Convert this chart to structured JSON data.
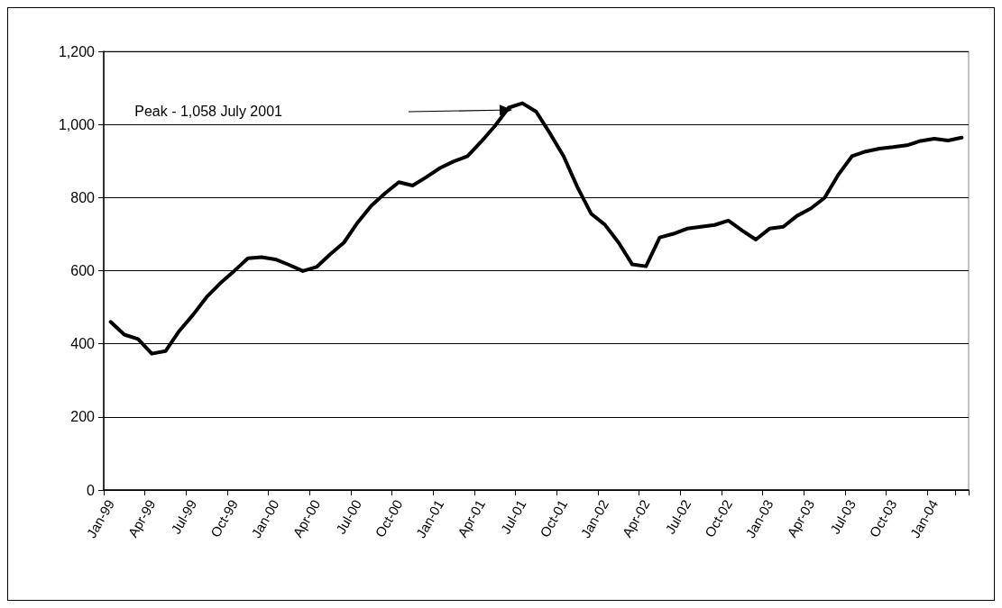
{
  "chart_data": {
    "type": "line",
    "categories": [
      "Jan-99",
      null,
      null,
      "Apr-99",
      null,
      null,
      "Jul-99",
      null,
      null,
      "Oct-99",
      null,
      null,
      "Jan-00",
      null,
      null,
      "Apr-00",
      null,
      null,
      "Jul-00",
      null,
      null,
      "Oct-00",
      null,
      null,
      "Jan-01",
      null,
      null,
      "Apr-01",
      null,
      null,
      "Jul-01",
      null,
      null,
      "Oct-01",
      null,
      null,
      "Jan-02",
      null,
      null,
      "Apr-02",
      null,
      null,
      "Jul-02",
      null,
      null,
      "Oct-02",
      null,
      null,
      "Jan-03",
      null,
      null,
      "Apr-03",
      null,
      null,
      "Jul-03",
      null,
      null,
      "Oct-03",
      null,
      null,
      "Jan-04",
      null,
      null
    ],
    "series": [
      {
        "color": "#000000",
        "values": [
          460,
          425,
          413,
          373,
          380,
          435,
          479,
          528,
          566,
          599,
          634,
          637,
          631,
          616,
          599,
          610,
          645,
          677,
          732,
          778,
          812,
          842,
          833,
          856,
          881,
          899,
          913,
          953,
          996,
          1046,
          1058,
          1035,
          976,
          913,
          829,
          756,
          726,
          677,
          617,
          612,
          691,
          701,
          715,
          720,
          725,
          737,
          710,
          685,
          715,
          720,
          750,
          770,
          799,
          862,
          913,
          926,
          934,
          938,
          943,
          955,
          961,
          956,
          964
        ]
      }
    ],
    "ylim": [
      0,
      1200
    ],
    "yticks": [
      0,
      200,
      400,
      600,
      800,
      {
        "value": 1000,
        "label": "1,000"
      },
      {
        "value": 1200,
        "label": "1,200"
      }
    ],
    "grid": "y",
    "marker": "none",
    "line_style": "solid",
    "annotations": [
      "Peak - 1,058 July 2001"
    ]
  }
}
